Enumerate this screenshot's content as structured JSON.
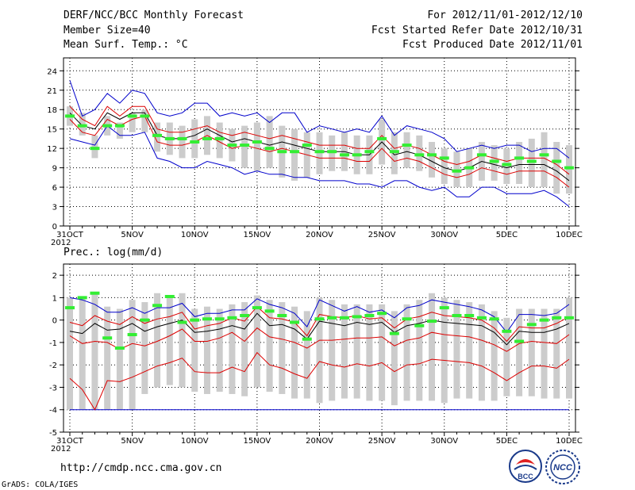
{
  "header": {
    "title": "DERF/NCC/BCC Monthly Forecast",
    "member_size": "Member Size=40",
    "variable": "Mean Surf. Temp.: °C",
    "forecast_period": "For 2012/11/01-2012/12/10",
    "started_refer": "Fcst Started Refer Date 2012/10/31",
    "produced": "Fcst Produced Date 2012/11/01"
  },
  "footer": {
    "url": "http://cmdp.ncc.cma.gov.cn",
    "grads": "GrADS: COLA/IGES",
    "logo_bcc": "BCC",
    "logo_ncc": "NCC"
  },
  "colors": {
    "mean": "#000000",
    "spread": "#dd0000",
    "extreme": "#0000cc",
    "box": "#cccccc",
    "obs": "#33ee33",
    "grid": "#000000"
  },
  "chart_data": [
    {
      "type": "line",
      "title": "Mean Surf. Temp.: °C",
      "x_tick_labels": [
        "31OCT",
        "5NOV",
        "10NOV",
        "15NOV",
        "20NOV",
        "25NOV",
        "30NOV",
        "5DEC",
        "10DEC"
      ],
      "x_year_label": "2012",
      "y_ticks": [
        0,
        3,
        6,
        9,
        12,
        15,
        18,
        21,
        24
      ],
      "ylim": [
        0,
        26
      ],
      "days": 41,
      "series": [
        {
          "name": "max",
          "values": [
            22.5,
            17,
            18,
            20.5,
            19,
            21,
            20.5,
            17.5,
            17,
            17.5,
            19,
            19,
            17,
            17.5,
            17,
            17.5,
            16,
            17.5,
            17.5,
            14.5,
            15.5,
            15,
            14.5,
            15,
            14.5,
            17,
            14,
            15.5,
            15,
            14.5,
            13.5,
            11.5,
            12,
            12.5,
            12,
            12.5,
            12.5,
            11.5,
            12,
            12,
            10.5
          ]
        },
        {
          "name": "upper",
          "values": [
            18.5,
            16.5,
            15.5,
            18.5,
            17,
            18.5,
            18.5,
            15,
            14.5,
            14.5,
            15,
            15.5,
            14.5,
            14,
            14.5,
            14,
            13.5,
            14,
            13.5,
            13,
            12.5,
            12.5,
            12.5,
            12,
            12,
            14,
            12,
            12.5,
            12,
            11,
            10,
            9.5,
            10,
            11,
            10.5,
            10,
            10.5,
            10.5,
            10.5,
            9.5,
            8
          ]
        },
        {
          "name": "mean",
          "values": [
            17.5,
            15.5,
            15,
            17.5,
            16.5,
            17.5,
            17.5,
            14,
            13.5,
            13.5,
            14,
            15,
            14,
            13,
            13.5,
            13,
            12.5,
            13,
            12.5,
            12,
            11.5,
            11.5,
            11.5,
            11,
            11,
            13,
            11,
            11.5,
            11,
            10,
            9,
            8.5,
            9,
            10,
            9.5,
            9,
            9.5,
            9.5,
            9.5,
            8.5,
            7
          ]
        },
        {
          "name": "lower",
          "values": [
            16.5,
            14.5,
            14,
            16.5,
            15.5,
            16.5,
            17,
            13,
            12.5,
            12.5,
            13,
            14,
            13,
            12,
            12.5,
            12,
            11.5,
            12,
            11.5,
            11,
            10.5,
            10.5,
            10.5,
            10,
            10,
            12,
            10,
            10.5,
            10,
            9,
            8,
            7.5,
            8,
            9,
            8.5,
            8,
            8.5,
            8.5,
            8.5,
            7.5,
            6
          ]
        },
        {
          "name": "min",
          "values": [
            13.5,
            13,
            12.5,
            15.5,
            14,
            14,
            14.5,
            10.5,
            10,
            9,
            9,
            10,
            9.5,
            9,
            8,
            8.5,
            8,
            8,
            7.5,
            7.5,
            7,
            7,
            7,
            6.5,
            6.5,
            6,
            7,
            7,
            6,
            5.5,
            6,
            4.5,
            4.5,
            6,
            6,
            5,
            5,
            5,
            5.5,
            4.5,
            3
          ]
        },
        {
          "name": "box_top",
          "values": [
            18.5,
            17.5,
            14,
            17,
            16,
            17.5,
            18,
            16,
            16,
            15.5,
            16.5,
            17,
            16,
            15,
            15.5,
            16,
            17,
            15.5,
            15,
            14.5,
            14.5,
            14,
            14.5,
            14,
            14,
            16.5,
            14.5,
            14.5,
            14,
            13,
            12,
            11.5,
            12,
            13,
            12.5,
            12,
            13,
            13.5,
            14.5,
            13,
            12.5
          ]
        },
        {
          "name": "box_bottom",
          "values": [
            15.5,
            14,
            10.5,
            14,
            13.5,
            14.5,
            14.5,
            11.5,
            11,
            10.5,
            10.5,
            11,
            10.5,
            10,
            9,
            8.5,
            9,
            7.5,
            7,
            7.5,
            8,
            8.5,
            8.5,
            8,
            8,
            9.5,
            8,
            9,
            8.5,
            7.5,
            6.5,
            6,
            6,
            7,
            7,
            6.5,
            6.5,
            6,
            6,
            5,
            5
          ]
        },
        {
          "name": "observed",
          "values": [
            17,
            15.5,
            12,
            15.5,
            15.5,
            17,
            17,
            14,
            13.5,
            13.5,
            13,
            13.5,
            13.5,
            12.5,
            12.5,
            13,
            12,
            11.5,
            11.5,
            12.5,
            11.5,
            11.5,
            11,
            11,
            11.5,
            13.5,
            11.5,
            12.5,
            11,
            11,
            10.5,
            8.5,
            9,
            11,
            10,
            9.5,
            10.5,
            10,
            11,
            10,
            9
          ]
        }
      ]
    },
    {
      "type": "line",
      "title": "Prec.: log(mm/d)",
      "x_tick_labels": [
        "31OCT",
        "5NOV",
        "10NOV",
        "15NOV",
        "20NOV",
        "25NOV",
        "30NOV",
        "5DEC",
        "10DEC"
      ],
      "x_year_label": "2012",
      "y_ticks": [
        -5,
        -4,
        -3,
        -2,
        -1,
        0,
        1,
        2
      ],
      "ylim": [
        -5,
        2.5
      ],
      "days": 41,
      "series": [
        {
          "name": "max",
          "values": [
            1,
            0.9,
            0.7,
            0.35,
            0.35,
            0.55,
            0.3,
            0.55,
            0.55,
            0.75,
            0.15,
            0.3,
            0.3,
            0.45,
            0.45,
            0.95,
            0.7,
            0.55,
            0.3,
            -0.3,
            0.9,
            0.65,
            0.4,
            0.6,
            0.35,
            0.45,
            0.1,
            0.55,
            0.65,
            0.9,
            0.8,
            0.7,
            0.6,
            0.45,
            0.15,
            -0.55,
            0.25,
            0.25,
            0.2,
            0.3,
            0.7
          ]
        },
        {
          "name": "upper",
          "values": [
            -0.1,
            -0.25,
            0.2,
            -0.05,
            -0.2,
            0.15,
            -0.15,
            0.05,
            0.15,
            0.35,
            -0.4,
            -0.25,
            -0.15,
            0.1,
            -0.05,
            0.6,
            0.1,
            0.05,
            -0.1,
            -0.7,
            0.25,
            0.15,
            0.1,
            0.2,
            0.05,
            0.1,
            -0.35,
            0.05,
            0.15,
            0.35,
            0.2,
            0.15,
            0.1,
            0,
            -0.35,
            -0.95,
            -0.3,
            -0.35,
            -0.35,
            -0.15,
            0.15
          ]
        },
        {
          "name": "mean",
          "values": [
            -0.5,
            -0.6,
            -0.15,
            -0.45,
            -0.4,
            -0.15,
            -0.5,
            -0.3,
            -0.15,
            0,
            -0.55,
            -0.5,
            -0.4,
            -0.25,
            -0.4,
            0.3,
            -0.25,
            -0.2,
            -0.4,
            -0.85,
            -0.05,
            -0.15,
            -0.25,
            -0.1,
            -0.2,
            -0.1,
            -0.55,
            -0.25,
            -0.15,
            0,
            -0.1,
            -0.15,
            -0.2,
            -0.25,
            -0.55,
            -1.1,
            -0.5,
            -0.55,
            -0.55,
            -0.4,
            -0.15
          ]
        },
        {
          "name": "lower",
          "values": [
            -0.7,
            -1.05,
            -0.95,
            -1,
            -1.3,
            -1.05,
            -1.15,
            -0.95,
            -0.7,
            -0.4,
            -0.95,
            -0.95,
            -0.8,
            -0.55,
            -0.95,
            -0.35,
            -0.75,
            -0.85,
            -1,
            -1.25,
            -0.9,
            -0.9,
            -0.85,
            -0.8,
            -0.8,
            -0.75,
            -1.15,
            -0.9,
            -0.8,
            -0.55,
            -0.65,
            -0.7,
            -0.75,
            -0.9,
            -1.1,
            -1.4,
            -1.05,
            -0.95,
            -1,
            -1.05,
            -0.65
          ]
        },
        {
          "name": "lower2",
          "values": [
            -2.6,
            -3.1,
            -4,
            -2.7,
            -2.75,
            -2.55,
            -2.3,
            -2.05,
            -1.9,
            -1.7,
            -2.3,
            -2.35,
            -2.35,
            -2.1,
            -2.3,
            -1.45,
            -2,
            -2.15,
            -2.4,
            -2.6,
            -1.85,
            -2,
            -2.1,
            -1.95,
            -2.05,
            -1.9,
            -2.3,
            -2,
            -1.95,
            -1.75,
            -1.8,
            -1.85,
            -1.9,
            -2.05,
            -2.35,
            -2.7,
            -2.35,
            -2.05,
            -2.05,
            -2.15,
            -1.75
          ]
        },
        {
          "name": "min",
          "values": [
            -4,
            -4,
            -4,
            -4,
            -4,
            -4,
            -4,
            -4,
            -4,
            -4,
            -4,
            -4,
            -4,
            -4,
            -4,
            -4,
            -4,
            -4,
            -4,
            -4,
            -4,
            -4,
            -4,
            -4,
            -4,
            -4,
            -4,
            -4,
            -4,
            -4,
            -4,
            -4,
            -4,
            -4,
            -4,
            -4,
            -4,
            -4,
            -4,
            -4,
            -4
          ]
        },
        {
          "name": "box_top",
          "values": [
            1,
            1,
            1.2,
            0.6,
            0.5,
            0.9,
            0.8,
            1.2,
            1.1,
            1.2,
            0.5,
            0.6,
            0.5,
            0.7,
            0.8,
            1.1,
            0.9,
            0.8,
            0.6,
            0.4,
            1,
            0.9,
            0.7,
            0.7,
            0.7,
            0.7,
            0.4,
            0.7,
            0.9,
            1.2,
            1,
            0.9,
            0.8,
            0.7,
            0.4,
            0.1,
            0.5,
            0.5,
            0.5,
            0.5,
            1
          ]
        },
        {
          "name": "box_bottom",
          "values": [
            -4,
            -4,
            -4,
            -4,
            -4,
            -4,
            -3.3,
            -3,
            -2.9,
            -3,
            -3.2,
            -3.3,
            -3.2,
            -3.3,
            -3.4,
            -3,
            -3.2,
            -3.3,
            -3.5,
            -3.5,
            -3.7,
            -3.6,
            -3.5,
            -3.5,
            -3.6,
            -3.6,
            -3.8,
            -3.6,
            -3.6,
            -3.6,
            -3.7,
            -3.5,
            -3.5,
            -3.6,
            -3.6,
            -3.4,
            -3.4,
            -3.4,
            -3.5,
            -3.5,
            -3.5
          ]
        },
        {
          "name": "observed",
          "values": [
            0.55,
            1,
            1.2,
            -0.8,
            -1.25,
            -0.65,
            0,
            0.65,
            1.05,
            -0.1,
            0,
            0.05,
            0.05,
            0.1,
            0.2,
            0.55,
            0.4,
            0.2,
            -0.1,
            -0.85,
            0.05,
            0.1,
            0.1,
            0.15,
            0.2,
            0.3,
            -0.6,
            0.05,
            -0.25,
            -0.05,
            0.55,
            0.2,
            0.2,
            0.1,
            0.05,
            -0.5,
            -0.95,
            -0.2,
            0,
            0.1,
            0.1
          ]
        }
      ]
    }
  ]
}
